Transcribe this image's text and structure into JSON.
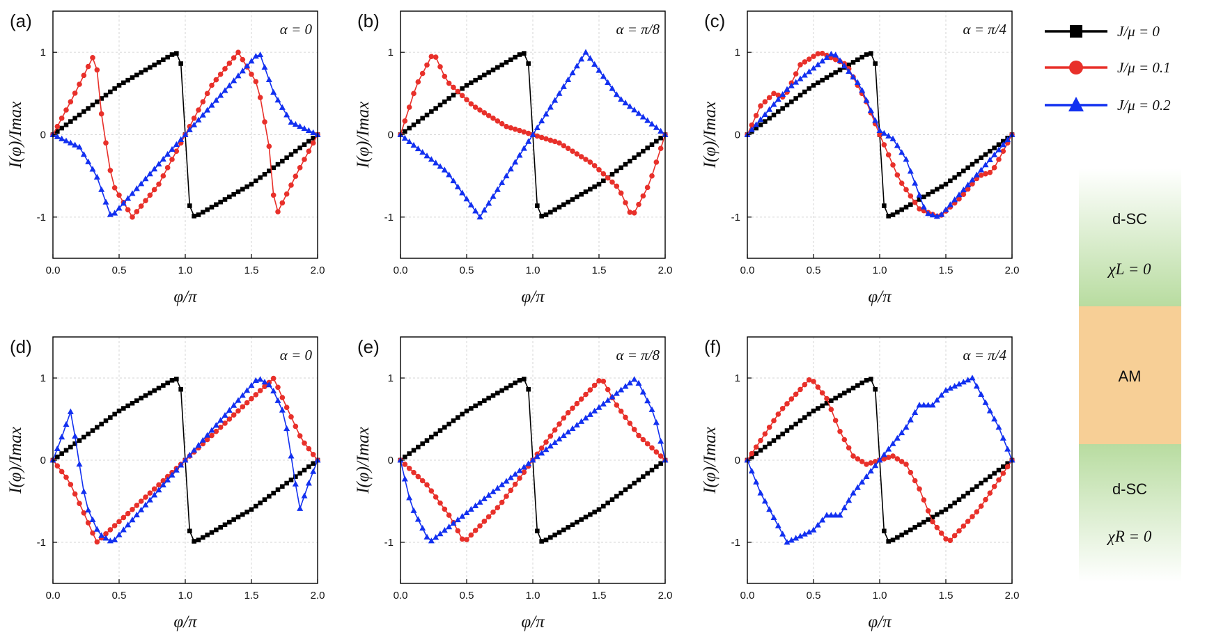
{
  "figure": {
    "legend": [
      {
        "label": "J/μ = 0",
        "color": "#000000",
        "marker": "square"
      },
      {
        "label": "J/μ = 0.1",
        "color": "#e8302a",
        "marker": "circle"
      },
      {
        "label": "J/μ = 0.2",
        "color": "#1230f0",
        "marker": "triangle"
      }
    ],
    "schematic": {
      "top_label": "d-SC",
      "top_sub": "χL = 0",
      "middle_label": "AM",
      "bottom_label": "d-SC",
      "bottom_sub": "χR = 0",
      "sc_color": "#b8dca0",
      "am_color": "#f7cf96"
    }
  },
  "chart_data": [
    {
      "panel": "(a)",
      "type": "line",
      "alpha": "α = 0",
      "xlabel": "φ/π",
      "ylabel": "I(φ)/Imax",
      "xlim": [
        0,
        2
      ],
      "ylim": [
        -1.5,
        1.5
      ],
      "xticks": [
        "0.0",
        "0.5",
        "1.0",
        "1.5",
        "2.0"
      ],
      "yticks": [
        "-1",
        "0",
        "1"
      ],
      "grid": true,
      "series": [
        {
          "name": "J/μ = 0",
          "key": "s0",
          "points": [
            [
              0,
              0
            ],
            [
              0.5,
              0.6
            ],
            [
              0.93,
              1
            ],
            [
              0.97,
              0.85
            ],
            [
              1.0,
              0
            ],
            [
              1.03,
              -0.85
            ],
            [
              1.07,
              -1
            ],
            [
              1.5,
              -0.6
            ],
            [
              2,
              0
            ]
          ]
        },
        {
          "name": "J/μ = 0.1",
          "key": "s1",
          "points": [
            [
              0,
              0
            ],
            [
              0.15,
              0.45
            ],
            [
              0.32,
              1
            ],
            [
              0.37,
              0.2
            ],
            [
              0.45,
              -0.6
            ],
            [
              0.6,
              -1
            ],
            [
              0.8,
              -0.6
            ],
            [
              1.0,
              0
            ],
            [
              1.2,
              0.6
            ],
            [
              1.4,
              1
            ],
            [
              1.55,
              0.6
            ],
            [
              1.64,
              -0.2
            ],
            [
              1.68,
              -1
            ],
            [
              1.85,
              -0.45
            ],
            [
              2,
              0
            ]
          ]
        },
        {
          "name": "J/μ = 0.2",
          "key": "s2",
          "points": [
            [
              0,
              0
            ],
            [
              0.2,
              -0.15
            ],
            [
              0.33,
              -0.5
            ],
            [
              0.44,
              -1
            ],
            [
              1.0,
              0
            ],
            [
              1.56,
              1
            ],
            [
              1.67,
              0.5
            ],
            [
              1.8,
              0.15
            ],
            [
              2,
              0
            ]
          ]
        }
      ]
    },
    {
      "panel": "(b)",
      "type": "line",
      "alpha": "α = π/8",
      "xlabel": "φ/π",
      "ylabel": "I(φ)/Imax",
      "xlim": [
        0,
        2
      ],
      "ylim": [
        -1.5,
        1.5
      ],
      "xticks": [
        "0.0",
        "0.5",
        "1.0",
        "1.5",
        "2.0"
      ],
      "yticks": [
        "-1",
        "0",
        "1"
      ],
      "grid": true,
      "series": [
        {
          "name": "J/μ = 0",
          "key": "s0",
          "points": [
            [
              0,
              0
            ],
            [
              0.5,
              0.6
            ],
            [
              0.93,
              1
            ],
            [
              0.97,
              0.85
            ],
            [
              1.0,
              0
            ],
            [
              1.03,
              -0.85
            ],
            [
              1.07,
              -1
            ],
            [
              1.5,
              -0.6
            ],
            [
              2,
              0
            ]
          ]
        },
        {
          "name": "J/μ = 0.1",
          "key": "s1",
          "points": [
            [
              0,
              0
            ],
            [
              0.12,
              0.6
            ],
            [
              0.25,
              1
            ],
            [
              0.35,
              0.65
            ],
            [
              0.55,
              0.35
            ],
            [
              0.8,
              0.1
            ],
            [
              1.0,
              0
            ],
            [
              1.2,
              -0.1
            ],
            [
              1.45,
              -0.35
            ],
            [
              1.65,
              -0.65
            ],
            [
              1.75,
              -1
            ],
            [
              1.88,
              -0.6
            ],
            [
              2,
              0
            ]
          ]
        },
        {
          "name": "J/μ = 0.2",
          "key": "s2",
          "points": [
            [
              0,
              0
            ],
            [
              0.35,
              -0.45
            ],
            [
              0.6,
              -1
            ],
            [
              1.0,
              0
            ],
            [
              1.4,
              1
            ],
            [
              1.65,
              0.45
            ],
            [
              2,
              0
            ]
          ]
        }
      ]
    },
    {
      "panel": "(c)",
      "type": "line",
      "alpha": "α = π/4",
      "xlabel": "φ/π",
      "ylabel": "I(φ)/Imax",
      "xlim": [
        0,
        2
      ],
      "ylim": [
        -1.5,
        1.5
      ],
      "xticks": [
        "0.0",
        "0.5",
        "1.0",
        "1.5",
        "2.0"
      ],
      "yticks": [
        "-1",
        "0",
        "1"
      ],
      "grid": true,
      "series": [
        {
          "name": "J/μ = 0",
          "key": "s0",
          "points": [
            [
              0,
              0
            ],
            [
              0.5,
              0.6
            ],
            [
              0.93,
              1
            ],
            [
              0.97,
              0.85
            ],
            [
              1.0,
              0
            ],
            [
              1.03,
              -0.85
            ],
            [
              1.07,
              -1
            ],
            [
              1.5,
              -0.6
            ],
            [
              2,
              0
            ]
          ]
        },
        {
          "name": "J/μ = 0.1",
          "key": "s1",
          "points": [
            [
              0,
              0
            ],
            [
              0.1,
              0.35
            ],
            [
              0.2,
              0.5
            ],
            [
              0.28,
              0.45
            ],
            [
              0.4,
              0.85
            ],
            [
              0.55,
              1
            ],
            [
              0.75,
              0.85
            ],
            [
              0.9,
              0.4
            ],
            [
              1.0,
              0
            ],
            [
              1.15,
              -0.55
            ],
            [
              1.3,
              -0.9
            ],
            [
              1.45,
              -1
            ],
            [
              1.62,
              -0.75
            ],
            [
              1.75,
              -0.5
            ],
            [
              1.85,
              -0.45
            ],
            [
              2,
              0
            ]
          ]
        },
        {
          "name": "J/μ = 0.2",
          "key": "s2",
          "points": [
            [
              0,
              0
            ],
            [
              0.3,
              0.55
            ],
            [
              0.65,
              1
            ],
            [
              0.85,
              0.6
            ],
            [
              1.0,
              0.05
            ],
            [
              1.1,
              -0.05
            ],
            [
              1.2,
              -0.3
            ],
            [
              1.35,
              -0.95
            ],
            [
              1.45,
              -1
            ],
            [
              1.7,
              -0.55
            ],
            [
              2,
              0
            ]
          ]
        }
      ]
    },
    {
      "panel": "(d)",
      "type": "line",
      "alpha": "α = 0",
      "xlabel": "φ/π",
      "ylabel": "I(φ)/Imax",
      "xlim": [
        0,
        2
      ],
      "ylim": [
        -1.5,
        1.5
      ],
      "xticks": [
        "0.0",
        "0.5",
        "1.0",
        "1.5",
        "2.0"
      ],
      "yticks": [
        "-1",
        "0",
        "1"
      ],
      "grid": true,
      "series": [
        {
          "name": "J/μ = 0",
          "key": "s0",
          "points": [
            [
              0,
              0
            ],
            [
              0.5,
              0.6
            ],
            [
              0.93,
              1
            ],
            [
              0.97,
              0.85
            ],
            [
              1.0,
              0
            ],
            [
              1.03,
              -0.85
            ],
            [
              1.07,
              -1
            ],
            [
              1.5,
              -0.6
            ],
            [
              2,
              0
            ]
          ]
        },
        {
          "name": "J/μ = 0.1",
          "key": "s1",
          "points": [
            [
              0,
              0
            ],
            [
              0.12,
              -0.25
            ],
            [
              0.25,
              -0.7
            ],
            [
              0.33,
              -1
            ],
            [
              0.6,
              -0.6
            ],
            [
              1.0,
              0
            ],
            [
              1.4,
              0.6
            ],
            [
              1.67,
              1
            ],
            [
              1.75,
              0.7
            ],
            [
              1.88,
              0.25
            ],
            [
              2,
              0
            ]
          ]
        },
        {
          "name": "J/μ = 0.2",
          "key": "s2",
          "points": [
            [
              0,
              0
            ],
            [
              0.06,
              0.25
            ],
            [
              0.14,
              0.62
            ],
            [
              0.17,
              0.25
            ],
            [
              0.25,
              -0.55
            ],
            [
              0.35,
              -0.9
            ],
            [
              0.45,
              -1
            ],
            [
              1.0,
              0
            ],
            [
              1.55,
              1
            ],
            [
              1.65,
              0.9
            ],
            [
              1.75,
              0.55
            ],
            [
              1.83,
              -0.25
            ],
            [
              1.86,
              -0.62
            ],
            [
              1.94,
              -0.25
            ],
            [
              2,
              0
            ]
          ]
        }
      ]
    },
    {
      "panel": "(e)",
      "type": "line",
      "alpha": "α = π/8",
      "xlabel": "φ/π",
      "ylabel": "I(φ)/Imax",
      "xlim": [
        0,
        2
      ],
      "ylim": [
        -1.5,
        1.5
      ],
      "xticks": [
        "0.0",
        "0.5",
        "1.0",
        "1.5",
        "2.0"
      ],
      "yticks": [
        "-1",
        "0",
        "1"
      ],
      "grid": true,
      "series": [
        {
          "name": "J/μ = 0",
          "key": "s0",
          "points": [
            [
              0,
              0
            ],
            [
              0.5,
              0.6
            ],
            [
              0.93,
              1
            ],
            [
              0.97,
              0.85
            ],
            [
              1.0,
              0
            ],
            [
              1.03,
              -0.85
            ],
            [
              1.07,
              -1
            ],
            [
              1.5,
              -0.6
            ],
            [
              2,
              0
            ]
          ]
        },
        {
          "name": "J/μ = 0.1",
          "key": "s1",
          "points": [
            [
              0,
              0
            ],
            [
              0.2,
              -0.3
            ],
            [
              0.38,
              -0.7
            ],
            [
              0.48,
              -1
            ],
            [
              0.75,
              -0.55
            ],
            [
              1.0,
              0
            ],
            [
              1.25,
              0.55
            ],
            [
              1.52,
              1
            ],
            [
              1.62,
              0.7
            ],
            [
              1.8,
              0.3
            ],
            [
              2,
              0
            ]
          ]
        },
        {
          "name": "J/μ = 0.2",
          "key": "s2",
          "points": [
            [
              0,
              0
            ],
            [
              0.08,
              -0.55
            ],
            [
              0.22,
              -1
            ],
            [
              1.0,
              0
            ],
            [
              1.78,
              1
            ],
            [
              1.92,
              0.55
            ],
            [
              2,
              0
            ]
          ]
        }
      ]
    },
    {
      "panel": "(f)",
      "type": "line",
      "alpha": "α = π/4",
      "xlabel": "φ/π",
      "ylabel": "I(φ)/Imax",
      "xlim": [
        0,
        2
      ],
      "ylim": [
        -1.5,
        1.5
      ],
      "xticks": [
        "0.0",
        "0.5",
        "1.0",
        "1.5",
        "2.0"
      ],
      "yticks": [
        "-1",
        "0",
        "1"
      ],
      "grid": true,
      "series": [
        {
          "name": "J/μ = 0",
          "key": "s0",
          "points": [
            [
              0,
              0
            ],
            [
              0.5,
              0.6
            ],
            [
              0.93,
              1
            ],
            [
              0.97,
              0.85
            ],
            [
              1.0,
              0
            ],
            [
              1.03,
              -0.85
            ],
            [
              1.07,
              -1
            ],
            [
              1.5,
              -0.6
            ],
            [
              2,
              0
            ]
          ]
        },
        {
          "name": "J/μ = 0.1",
          "key": "s1",
          "points": [
            [
              0,
              0
            ],
            [
              0.25,
              0.6
            ],
            [
              0.48,
              1
            ],
            [
              0.6,
              0.75
            ],
            [
              0.7,
              0.35
            ],
            [
              0.8,
              0.05
            ],
            [
              0.9,
              -0.05
            ],
            [
              1.0,
              0
            ],
            [
              1.1,
              0.05
            ],
            [
              1.2,
              -0.05
            ],
            [
              1.3,
              -0.35
            ],
            [
              1.4,
              -0.75
            ],
            [
              1.52,
              -1
            ],
            [
              1.75,
              -0.6
            ],
            [
              2,
              0
            ]
          ]
        },
        {
          "name": "J/μ = 0.2",
          "key": "s2",
          "points": [
            [
              0,
              0
            ],
            [
              0.1,
              -0.4
            ],
            [
              0.3,
              -1
            ],
            [
              0.5,
              -0.85
            ],
            [
              0.6,
              -0.67
            ],
            [
              0.7,
              -0.67
            ],
            [
              0.8,
              -0.4
            ],
            [
              1.0,
              0
            ],
            [
              1.2,
              0.4
            ],
            [
              1.3,
              0.67
            ],
            [
              1.4,
              0.67
            ],
            [
              1.5,
              0.85
            ],
            [
              1.7,
              1
            ],
            [
              1.9,
              0.4
            ],
            [
              2,
              0
            ]
          ]
        }
      ]
    }
  ]
}
